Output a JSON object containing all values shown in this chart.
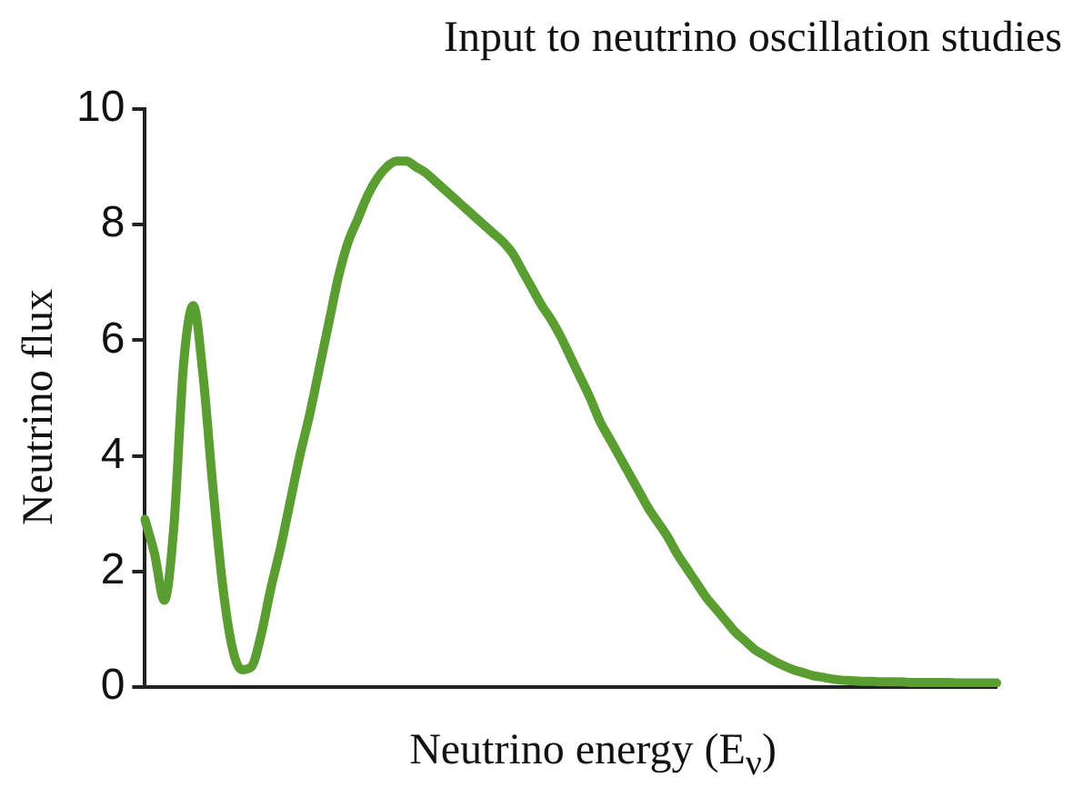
{
  "chart_data": {
    "type": "line",
    "title": "Input to neutrino oscillation studies",
    "xlabel": "Neutrino energy (E$_{ν}$)",
    "ylabel": "Neutrino flux",
    "categories": [
      null,
      null,
      null,
      null,
      null,
      null,
      null,
      null,
      null,
      null,
      null,
      null,
      null,
      null,
      null,
      null,
      null,
      null,
      null,
      null,
      null,
      null,
      null,
      null,
      null,
      null,
      null,
      null,
      null,
      null,
      null,
      null,
      null,
      null,
      null,
      null,
      null,
      null,
      null,
      null,
      null,
      null,
      null,
      null,
      null,
      null,
      null,
      null,
      null,
      null,
      null,
      null,
      null,
      null,
      null,
      null,
      null,
      null,
      null,
      null,
      null,
      null,
      null,
      null,
      null,
      null,
      null,
      null,
      null,
      null,
      null,
      null,
      null,
      null,
      null,
      null,
      null,
      null,
      null,
      null,
      null,
      null,
      null,
      null,
      null,
      null,
      null,
      null,
      null
    ],
    "series": [
      {
        "color": "#5a9e32",
        "values": [
          2.9,
          2.3,
          1.5,
          2.8,
          5.6,
          6.6,
          5.4,
          3.5,
          1.8,
          0.7,
          0.3,
          0.35,
          0.9,
          1.7,
          2.4,
          3.2,
          4.0,
          4.7,
          5.5,
          6.3,
          7.1,
          7.7,
          8.1,
          8.5,
          8.8,
          9.0,
          9.1,
          9.1,
          9.0,
          8.9,
          8.75,
          8.6,
          8.45,
          8.3,
          8.15,
          8.0,
          7.85,
          7.7,
          7.5,
          7.2,
          6.9,
          6.6,
          6.35,
          6.05,
          5.7,
          5.35,
          5.0,
          4.6,
          4.3,
          4.0,
          3.7,
          3.4,
          3.1,
          2.85,
          2.6,
          2.3,
          2.05,
          1.8,
          1.55,
          1.35,
          1.15,
          0.95,
          0.8,
          0.65,
          0.55,
          0.45,
          0.37,
          0.3,
          0.25,
          0.2,
          0.17,
          0.14,
          0.12,
          0.11,
          0.1,
          0.1,
          0.09,
          0.09,
          0.09,
          0.08,
          0.08,
          0.08,
          0.08,
          0.08,
          0.07,
          0.07,
          0.07,
          0.07,
          0.07
        ]
      }
    ],
    "ylim": [
      0,
      10
    ],
    "yticks": [
      0,
      2,
      4,
      6,
      8,
      10
    ],
    "grid": false,
    "legend": false,
    "marker": "none",
    "line_style": "solid",
    "tick_labels": "y"
  }
}
